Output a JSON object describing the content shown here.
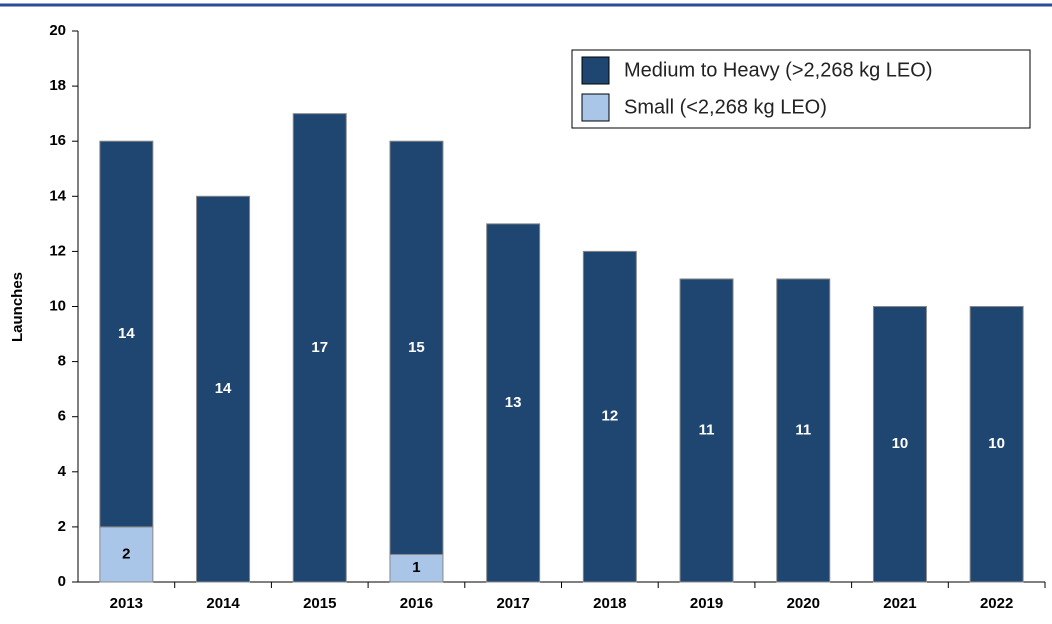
{
  "chart_data": {
    "type": "stacked_bar",
    "y_label": "Launches",
    "categories": [
      "2013",
      "2014",
      "2015",
      "2016",
      "2017",
      "2018",
      "2019",
      "2020",
      "2021",
      "2022"
    ],
    "series": [
      {
        "name": "Small (<2,268 kg LEO)",
        "color": "#a9c6e9",
        "values": [
          2,
          0,
          0,
          1,
          0,
          0,
          0,
          0,
          0,
          0
        ]
      },
      {
        "name": "Medium to Heavy (>2,268 kg LEO)",
        "color": "#1f4670",
        "values": [
          14,
          14,
          17,
          15,
          13,
          12,
          11,
          11,
          10,
          10
        ]
      }
    ],
    "ylim": [
      0,
      20
    ],
    "yticks": [
      0,
      2,
      4,
      6,
      8,
      10,
      12,
      14,
      16,
      18,
      20
    ],
    "legend": "upper right"
  }
}
